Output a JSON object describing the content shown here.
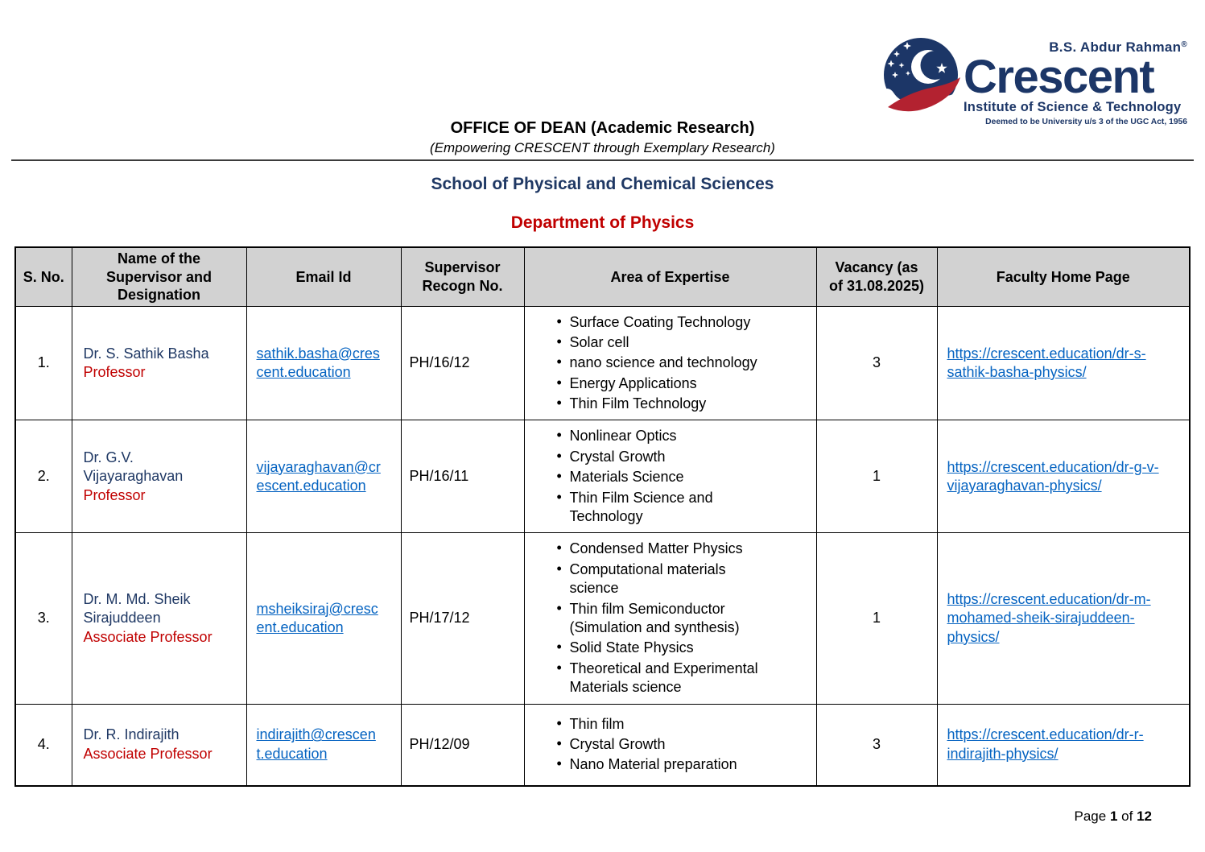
{
  "logo": {
    "brand_top": "B.S. Abdur Rahman",
    "registered_mark": "®",
    "brand_name": "Crescent",
    "brand_sub": "Institute of Science & Technology",
    "brand_tagline": "Deemed to be University u/s 3 of the UGC Act, 1956"
  },
  "header": {
    "office_title": "OFFICE OF DEAN (Academic Research)",
    "office_subtitle": "(Empowering CRESCENT through Exemplary Research)",
    "school_title": "School of Physical and Chemical Sciences",
    "department_title": "Department of Physics"
  },
  "colors": {
    "heading_navy": "#1f3864",
    "heading_red": "#c00000",
    "link_blue": "#0563c1",
    "table_header_gray": "#d2d2d2",
    "logo_navy": "#1c3667",
    "logo_red": "#b32230"
  },
  "table": {
    "columns": [
      "S. No.",
      "Name of the\nSupervisor and\nDesignation",
      "Email Id",
      "Supervisor\nRecogn No.",
      "Area of Expertise",
      "Vacancy (as\nof 31.08.2025)",
      "Faculty Home Page"
    ],
    "rows": [
      {
        "sno": "1.",
        "name": "Dr. S. Sathik Basha",
        "designation": "Professor",
        "email": "sathik.basha@crescent.education",
        "recogn_no": "PH/16/12",
        "expertise": [
          "Surface Coating Technology",
          "Solar cell",
          "nano science and technology",
          "Energy Applications",
          "Thin Film Technology"
        ],
        "vacancy": "3",
        "home_page": "https://crescent.education/dr-s-sathik-basha-physics/"
      },
      {
        "sno": "2.",
        "name": "Dr. G.V. Vijayaraghavan",
        "designation": "Professor",
        "email": "vijayaraghavan@crescent.education",
        "recogn_no": "PH/16/11",
        "expertise": [
          "Nonlinear Optics",
          "Crystal Growth",
          "Materials Science",
          "Thin Film Science and Technology"
        ],
        "vacancy": "1",
        "home_page": "https://crescent.education/dr-g-v-vijayaraghavan-physics/"
      },
      {
        "sno": "3.",
        "name": "Dr. M. Md. Sheik Sirajuddeen",
        "designation": "Associate Professor",
        "email": "msheiksiraj@crescent.education",
        "recogn_no": "PH/17/12",
        "expertise": [
          "Condensed Matter Physics",
          "Computational materials science",
          "Thin film Semiconductor (Simulation and synthesis)",
          "Solid State Physics",
          "Theoretical and Experimental Materials science"
        ],
        "vacancy": "1",
        "home_page": "https://crescent.education/dr-m-mohamed-sheik-sirajuddeen-physics/"
      },
      {
        "sno": "4.",
        "name": "Dr. R. Indirajith",
        "designation": "Associate Professor",
        "email": "indirajith@crescent.education",
        "recogn_no": "PH/12/09",
        "expertise": [
          "Thin film",
          "Crystal Growth",
          "Nano Material preparation"
        ],
        "vacancy": "3",
        "home_page": "https://crescent.education/dr-r-indirajith-physics/"
      }
    ]
  },
  "footer": {
    "page_label": "Page",
    "page_number": "1",
    "of_label": "of",
    "page_total": "12"
  }
}
